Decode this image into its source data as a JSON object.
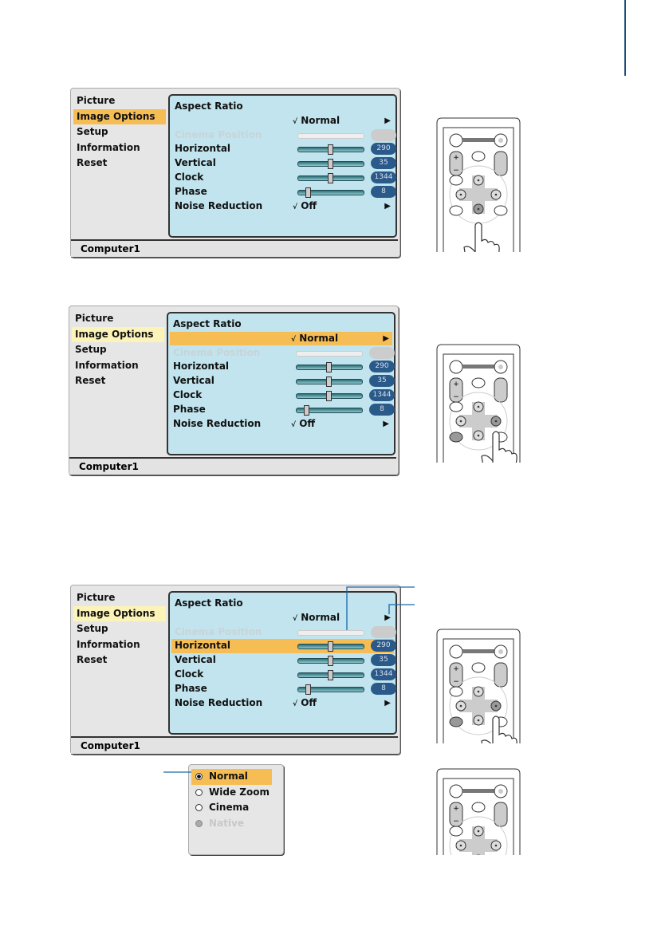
{
  "sidebar": [
    "Picture",
    "Image Options",
    "Setup",
    "Information",
    "Reset"
  ],
  "rows": [
    {
      "label": "Aspect Ratio",
      "type": "title"
    },
    {
      "label": "",
      "type": "option",
      "value": "Normal",
      "check": "√"
    },
    {
      "label": "Cinema Position",
      "type": "slider",
      "disabled": true,
      "value": "",
      "level": 0
    },
    {
      "label": "Horizontal",
      "type": "slider",
      "value": "290",
      "level": 0.5
    },
    {
      "label": "Vertical",
      "type": "slider",
      "value": "35",
      "level": 0.5
    },
    {
      "label": "Clock",
      "type": "slider",
      "value": "1344",
      "level": 0.5
    },
    {
      "label": "Phase",
      "type": "slider",
      "value": "8",
      "level": 0.15
    },
    {
      "label": "Noise Reduction",
      "type": "option",
      "value": "Off",
      "check": "√"
    }
  ],
  "screens": [
    {
      "status": "Computer1",
      "highlight_row": null,
      "sidebar_style": "sel1",
      "pressed_key": "down"
    },
    {
      "status": "Computer1",
      "highlight_row": 1,
      "sidebar_style": "sel2",
      "pressed_key": "right"
    },
    {
      "status": "Computer1",
      "highlight_row": 3,
      "sidebar_style": "sel2",
      "pressed_key": "right"
    }
  ],
  "popup": {
    "items": [
      {
        "label": "Normal",
        "selected": true,
        "disabled": false
      },
      {
        "label": "Wide Zoom",
        "selected": false,
        "disabled": false
      },
      {
        "label": "Cinema",
        "selected": false,
        "disabled": false
      },
      {
        "label": "Native",
        "selected": false,
        "disabled": true
      }
    ]
  },
  "colors": {
    "highlight": "#f6bd55",
    "panel": "#c1e4ee",
    "pill": "#2a5a8a",
    "leader": "#1a6aa8"
  },
  "icons": {
    "arrow": "triangle-right-icon",
    "check": "check-icon",
    "remote": "remote-control-icon",
    "hand": "pointing-hand-icon"
  }
}
